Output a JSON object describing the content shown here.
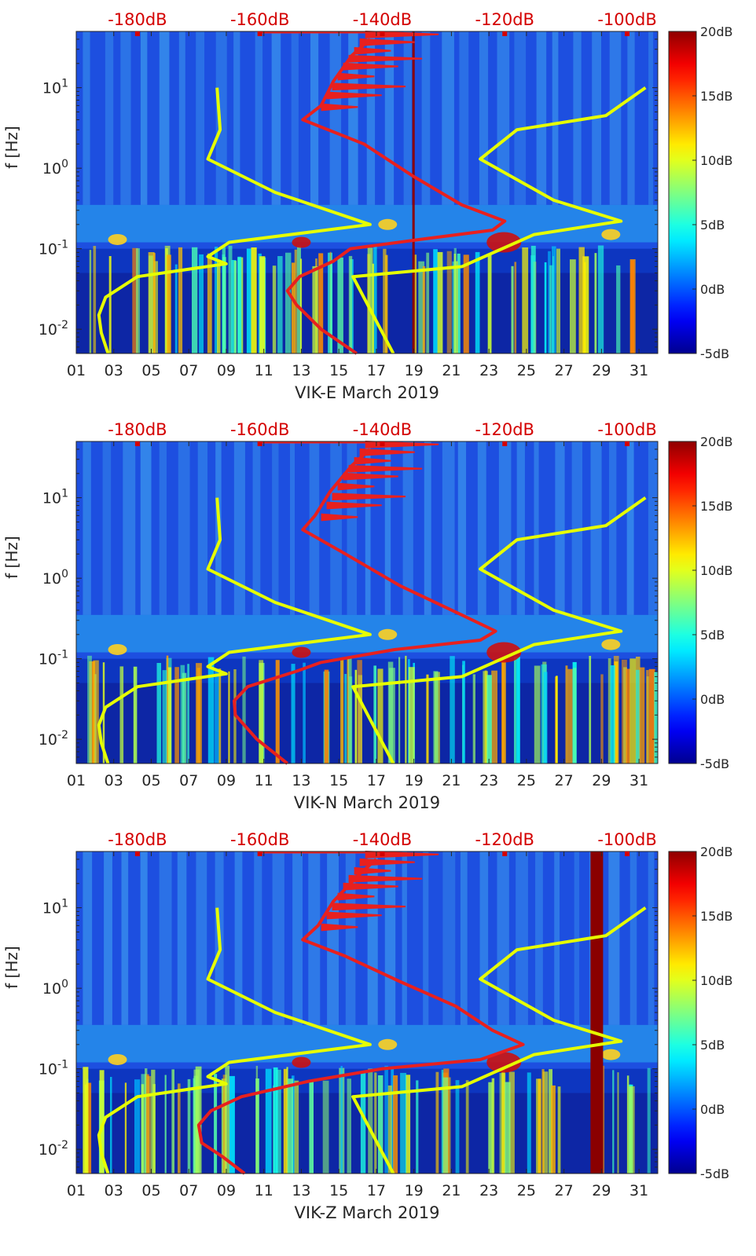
{
  "colors": {
    "noise_model": "#e6ff00",
    "psd_curve": "#e8201e",
    "top_axis": "#d40000",
    "colormap": [
      "#00008f",
      "#0000ff",
      "#00ffff",
      "#ffff00",
      "#ff0000",
      "#800000"
    ]
  },
  "chart_data": [
    {
      "type": "heatmap",
      "station": "VIK-E",
      "xlabel": "VIK-E March 2019",
      "ylabel": "f [Hz]",
      "x_ticks": [
        "01",
        "03",
        "05",
        "07",
        "09",
        "11",
        "13",
        "15",
        "17",
        "19",
        "21",
        "23",
        "25",
        "27",
        "29",
        "31"
      ],
      "x_range": [
        1,
        32
      ],
      "y_scale": "log",
      "y_range": [
        0.005,
        50
      ],
      "y_ticks": [
        {
          "value": 0.01,
          "base": "10",
          "exp": "-2"
        },
        {
          "value": 0.1,
          "base": "10",
          "exp": "-1"
        },
        {
          "value": 1,
          "base": "10",
          "exp": "0"
        },
        {
          "value": 10,
          "base": "10",
          "exp": "1"
        }
      ],
      "top_axis_labels": [
        "-180dB",
        "-160dB",
        "-140dB",
        "-120dB",
        "-100dB"
      ],
      "top_axis_range_db": [
        -190,
        -95
      ],
      "colorbar": {
        "range_db": [
          -5,
          20
        ],
        "labels": [
          "20dB",
          "15dB",
          "10dB",
          "5dB",
          "0dB",
          "-5dB"
        ]
      },
      "noise_model_db": [
        {
          "f": 0.005,
          "db": -184.8
        },
        {
          "f": 0.009,
          "db": -185.9
        },
        {
          "f": 0.015,
          "db": -186.3
        },
        {
          "f": 0.025,
          "db": -185.2
        },
        {
          "f": 0.045,
          "db": -180.0
        },
        {
          "f": 0.065,
          "db": -165.5
        },
        {
          "f": 0.08,
          "db": -168.5
        },
        {
          "f": 0.12,
          "db": -165.0
        },
        {
          "f": 0.2,
          "db": -142.0
        },
        {
          "f": 0.5,
          "db": -157.5
        },
        {
          "f": 1.3,
          "db": -168.5
        },
        {
          "f": 3.0,
          "db": -166.5
        },
        {
          "f": 10,
          "db": -167.0
        }
      ],
      "noise_model_hi_db": [
        {
          "f": 0.005,
          "db": -138.2
        },
        {
          "f": 0.045,
          "db": -144.8
        },
        {
          "f": 0.06,
          "db": -127.0
        },
        {
          "f": 0.15,
          "db": -115.2
        },
        {
          "f": 0.22,
          "db": -101.0
        },
        {
          "f": 0.4,
          "db": -112.0
        },
        {
          "f": 1.3,
          "db": -124.0
        },
        {
          "f": 3.0,
          "db": -118.0
        },
        {
          "f": 4.5,
          "db": -103.5
        },
        {
          "f": 10,
          "db": -97.0
        }
      ],
      "psd_db": [
        {
          "f": 0.005,
          "db": -144.2
        },
        {
          "f": 0.01,
          "db": -150.0
        },
        {
          "f": 0.02,
          "db": -154.0
        },
        {
          "f": 0.03,
          "db": -155.5
        },
        {
          "f": 0.045,
          "db": -153.5
        },
        {
          "f": 0.07,
          "db": -148.0
        },
        {
          "f": 0.1,
          "db": -145.2
        },
        {
          "f": 0.13,
          "db": -134.0
        },
        {
          "f": 0.17,
          "db": -122.0
        },
        {
          "f": 0.22,
          "db": -120.0
        },
        {
          "f": 0.35,
          "db": -127.0
        },
        {
          "f": 0.8,
          "db": -135.0
        },
        {
          "f": 2.0,
          "db": -143.0
        },
        {
          "f": 4.0,
          "db": -153.0
        },
        {
          "f": 6.0,
          "db": -150.0
        },
        {
          "f": 12,
          "db": -148.0
        },
        {
          "f": 25,
          "db": -145.0
        },
        {
          "f": 40,
          "db": -142.0
        }
      ],
      "saturated_day": 19
    },
    {
      "type": "heatmap",
      "station": "VIK-N",
      "xlabel": "VIK-N March 2019",
      "ylabel": "f [Hz]",
      "x_ticks": [
        "01",
        "03",
        "05",
        "07",
        "09",
        "11",
        "13",
        "15",
        "17",
        "19",
        "21",
        "23",
        "25",
        "27",
        "29",
        "31"
      ],
      "x_range": [
        1,
        32
      ],
      "y_scale": "log",
      "y_range": [
        0.005,
        50
      ],
      "y_ticks": [
        {
          "value": 0.01,
          "base": "10",
          "exp": "-2"
        },
        {
          "value": 0.1,
          "base": "10",
          "exp": "-1"
        },
        {
          "value": 1,
          "base": "10",
          "exp": "0"
        },
        {
          "value": 10,
          "base": "10",
          "exp": "1"
        }
      ],
      "top_axis_labels": [
        "-180dB",
        "-160dB",
        "-140dB",
        "-120dB",
        "-100dB"
      ],
      "top_axis_range_db": [
        -190,
        -95
      ],
      "colorbar": {
        "range_db": [
          -5,
          20
        ],
        "labels": [
          "20dB",
          "15dB",
          "10dB",
          "5dB",
          "0dB",
          "-5dB"
        ]
      },
      "noise_model_db": [
        {
          "f": 0.005,
          "db": -184.8
        },
        {
          "f": 0.009,
          "db": -185.9
        },
        {
          "f": 0.015,
          "db": -186.3
        },
        {
          "f": 0.025,
          "db": -185.2
        },
        {
          "f": 0.045,
          "db": -180.0
        },
        {
          "f": 0.065,
          "db": -165.5
        },
        {
          "f": 0.08,
          "db": -168.5
        },
        {
          "f": 0.12,
          "db": -165.0
        },
        {
          "f": 0.2,
          "db": -142.0
        },
        {
          "f": 0.5,
          "db": -157.5
        },
        {
          "f": 1.3,
          "db": -168.5
        },
        {
          "f": 3.0,
          "db": -166.5
        },
        {
          "f": 10,
          "db": -167.0
        }
      ],
      "noise_model_hi_db": [
        {
          "f": 0.005,
          "db": -138.2
        },
        {
          "f": 0.045,
          "db": -144.8
        },
        {
          "f": 0.06,
          "db": -127.0
        },
        {
          "f": 0.15,
          "db": -115.2
        },
        {
          "f": 0.22,
          "db": -101.0
        },
        {
          "f": 0.4,
          "db": -112.0
        },
        {
          "f": 1.3,
          "db": -124.0
        },
        {
          "f": 3.0,
          "db": -118.0
        },
        {
          "f": 4.5,
          "db": -103.5
        },
        {
          "f": 10,
          "db": -97.0
        }
      ],
      "psd_db": [
        {
          "f": 0.005,
          "db": -155.5
        },
        {
          "f": 0.01,
          "db": -160.5
        },
        {
          "f": 0.02,
          "db": -164.0
        },
        {
          "f": 0.03,
          "db": -164.2
        },
        {
          "f": 0.045,
          "db": -162.0
        },
        {
          "f": 0.07,
          "db": -154.0
        },
        {
          "f": 0.09,
          "db": -150.0
        },
        {
          "f": 0.13,
          "db": -138.0
        },
        {
          "f": 0.17,
          "db": -124.0
        },
        {
          "f": 0.22,
          "db": -121.5
        },
        {
          "f": 0.35,
          "db": -127.0
        },
        {
          "f": 0.8,
          "db": -137.0
        },
        {
          "f": 2.0,
          "db": -146.0
        },
        {
          "f": 4.0,
          "db": -153.0
        },
        {
          "f": 6.0,
          "db": -151.0
        },
        {
          "f": 12,
          "db": -148.5
        },
        {
          "f": 25,
          "db": -145.0
        },
        {
          "f": 40,
          "db": -142.0
        }
      ],
      "saturated_day": null
    },
    {
      "type": "heatmap",
      "station": "VIK-Z",
      "xlabel": "VIK-Z March 2019",
      "ylabel": "f [Hz]",
      "x_ticks": [
        "01",
        "03",
        "05",
        "07",
        "09",
        "11",
        "13",
        "15",
        "17",
        "19",
        "21",
        "23",
        "25",
        "27",
        "29",
        "31"
      ],
      "x_range": [
        1,
        32
      ],
      "y_scale": "log",
      "y_range": [
        0.005,
        50
      ],
      "y_ticks": [
        {
          "value": 0.01,
          "base": "10",
          "exp": "-2"
        },
        {
          "value": 0.1,
          "base": "10",
          "exp": "-1"
        },
        {
          "value": 1,
          "base": "10",
          "exp": "0"
        },
        {
          "value": 10,
          "base": "10",
          "exp": "1"
        }
      ],
      "top_axis_labels": [
        "-180dB",
        "-160dB",
        "-140dB",
        "-120dB",
        "-100dB"
      ],
      "top_axis_range_db": [
        -190,
        -95
      ],
      "colorbar": {
        "range_db": [
          -5,
          20
        ],
        "labels": [
          "20dB",
          "15dB",
          "10dB",
          "5dB",
          "0dB",
          "-5dB"
        ]
      },
      "noise_model_db": [
        {
          "f": 0.005,
          "db": -184.8
        },
        {
          "f": 0.009,
          "db": -185.9
        },
        {
          "f": 0.015,
          "db": -186.3
        },
        {
          "f": 0.025,
          "db": -185.2
        },
        {
          "f": 0.045,
          "db": -180.0
        },
        {
          "f": 0.065,
          "db": -165.5
        },
        {
          "f": 0.08,
          "db": -168.5
        },
        {
          "f": 0.12,
          "db": -165.0
        },
        {
          "f": 0.2,
          "db": -142.0
        },
        {
          "f": 0.5,
          "db": -157.5
        },
        {
          "f": 1.3,
          "db": -168.5
        },
        {
          "f": 3.0,
          "db": -166.5
        },
        {
          "f": 10,
          "db": -167.0
        }
      ],
      "noise_model_hi_db": [
        {
          "f": 0.005,
          "db": -138.2
        },
        {
          "f": 0.045,
          "db": -144.8
        },
        {
          "f": 0.06,
          "db": -127.0
        },
        {
          "f": 0.15,
          "db": -115.2
        },
        {
          "f": 0.22,
          "db": -101.0
        },
        {
          "f": 0.4,
          "db": -112.0
        },
        {
          "f": 1.3,
          "db": -124.0
        },
        {
          "f": 3.0,
          "db": -118.0
        },
        {
          "f": 4.5,
          "db": -103.5
        },
        {
          "f": 10,
          "db": -97.0
        }
      ],
      "psd_db": [
        {
          "f": 0.005,
          "db": -162.5
        },
        {
          "f": 0.008,
          "db": -166.0
        },
        {
          "f": 0.012,
          "db": -169.5
        },
        {
          "f": 0.02,
          "db": -170.0
        },
        {
          "f": 0.03,
          "db": -168.0
        },
        {
          "f": 0.045,
          "db": -163.0
        },
        {
          "f": 0.07,
          "db": -152.0
        },
        {
          "f": 0.1,
          "db": -140.0
        },
        {
          "f": 0.13,
          "db": -124.0
        },
        {
          "f": 0.2,
          "db": -117.0
        },
        {
          "f": 0.3,
          "db": -122.0
        },
        {
          "f": 0.6,
          "db": -128.0
        },
        {
          "f": 1.2,
          "db": -137.0
        },
        {
          "f": 2.5,
          "db": -146.0
        },
        {
          "f": 4.0,
          "db": -153.0
        },
        {
          "f": 6.0,
          "db": -150.5
        },
        {
          "f": 12,
          "db": -148.0
        },
        {
          "f": 25,
          "db": -144.0
        },
        {
          "f": 40,
          "db": -141.0
        }
      ],
      "saturated_day": 29
    }
  ]
}
